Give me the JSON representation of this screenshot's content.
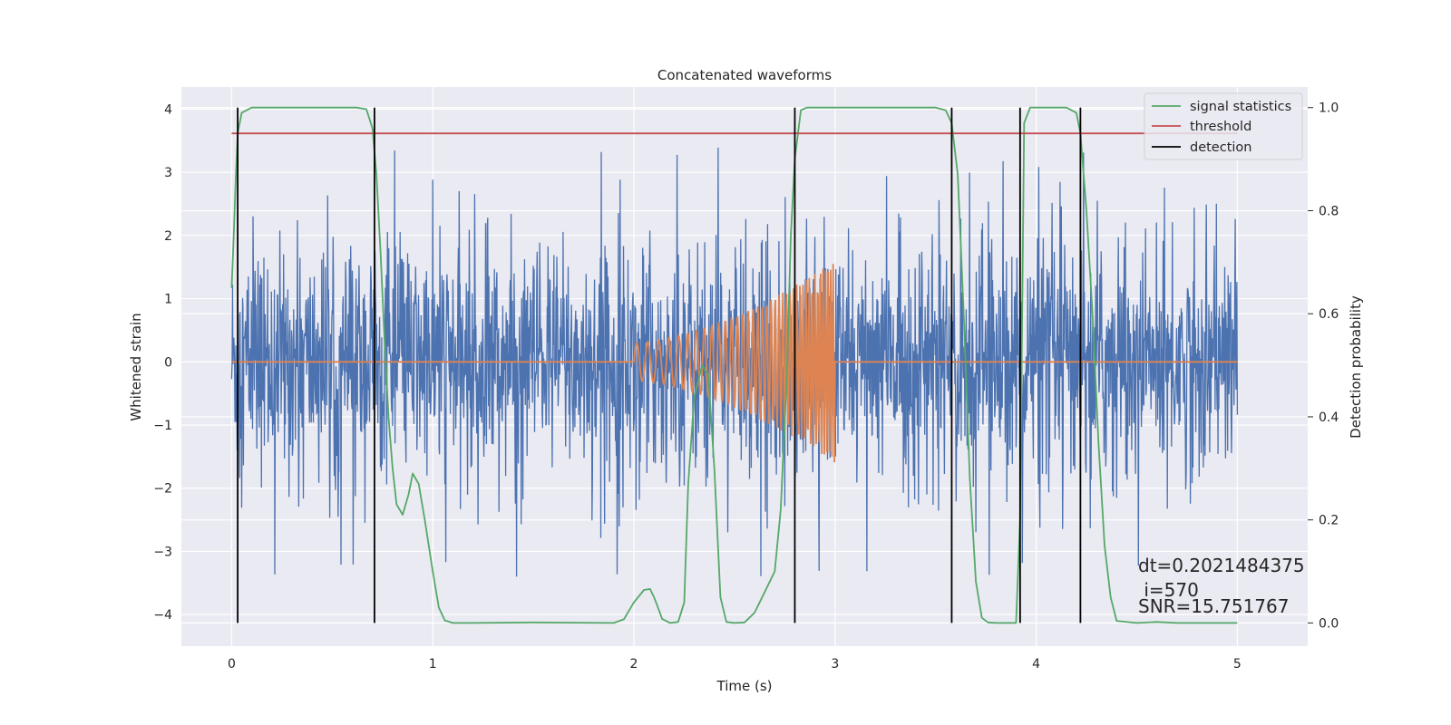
{
  "chart_data": {
    "type": "line",
    "title": "Concatenated waveforms",
    "xlabel": "Time (s)",
    "ylabel": "Whitened strain",
    "y2label": "Detection probability",
    "xlim": [
      -0.25,
      5.35
    ],
    "ylim": [
      -4.5,
      4.35
    ],
    "y2lim": [
      -0.045,
      1.04
    ],
    "xticks": [
      0,
      1,
      2,
      3,
      4,
      5
    ],
    "xtick_labels": [
      "0",
      "1",
      "2",
      "3",
      "4",
      "5"
    ],
    "yticks": [
      -4,
      -3,
      -2,
      -1,
      0,
      1,
      2,
      3,
      4
    ],
    "ytick_labels": [
      "−4",
      "−3",
      "−2",
      "−1",
      "0",
      "1",
      "2",
      "3",
      "4"
    ],
    "y2ticks": [
      0.0,
      0.2,
      0.4,
      0.6,
      0.8,
      1.0
    ],
    "y2tick_labels": [
      "0.0",
      "0.2",
      "0.4",
      "0.6",
      "0.8",
      "1.0"
    ],
    "grid": true,
    "legend_position": "top-right",
    "series": [
      {
        "name": "",
        "kind": "noise",
        "axis": "left",
        "color": "#4c72b0",
        "x_range": [
          0,
          5
        ],
        "typical_amplitude": 1.6,
        "peak_amplitude": 3.4
      },
      {
        "name": "",
        "kind": "chirp",
        "axis": "left",
        "color": "#dd8452",
        "x_range": [
          0,
          5
        ],
        "chirp_start": 2.0,
        "chirp_end": 3.0,
        "amplitude_start": 0.3,
        "amplitude_end": 1.6
      },
      {
        "name": "signal statistics",
        "axis": "right",
        "color": "#55a868",
        "x": [
          0.0,
          0.01,
          0.02,
          0.03,
          0.05,
          0.1,
          0.2,
          0.5,
          0.62,
          0.67,
          0.7,
          0.72,
          0.74,
          0.76,
          0.78,
          0.8,
          0.82,
          0.85,
          0.88,
          0.9,
          0.93,
          0.96,
          1.0,
          1.03,
          1.06,
          1.1,
          1.2,
          1.5,
          1.9,
          1.95,
          2.0,
          2.05,
          2.08,
          2.1,
          2.12,
          2.14,
          2.18,
          2.22,
          2.25,
          2.27,
          2.3,
          2.34,
          2.37,
          2.4,
          2.43,
          2.46,
          2.5,
          2.55,
          2.6,
          2.65,
          2.7,
          2.73,
          2.76,
          2.78,
          2.8,
          2.83,
          2.86,
          2.9,
          3.0,
          3.5,
          3.55,
          3.58,
          3.61,
          3.64,
          3.67,
          3.7,
          3.73,
          3.76,
          3.8,
          3.9,
          3.92,
          3.94,
          3.97,
          4.0,
          4.05,
          4.15,
          4.2,
          4.22,
          4.25,
          4.28,
          4.31,
          4.34,
          4.37,
          4.4,
          4.5,
          4.6,
          4.7,
          5.0
        ],
        "y": [
          0.65,
          0.75,
          0.86,
          0.95,
          0.99,
          1.0,
          1.0,
          1.0,
          1.0,
          0.997,
          0.96,
          0.87,
          0.72,
          0.55,
          0.4,
          0.3,
          0.23,
          0.21,
          0.25,
          0.29,
          0.27,
          0.2,
          0.1,
          0.03,
          0.005,
          0.0,
          0.0,
          0.001,
          0.0,
          0.007,
          0.04,
          0.064,
          0.066,
          0.05,
          0.03,
          0.008,
          0.0,
          0.002,
          0.04,
          0.27,
          0.44,
          0.5,
          0.48,
          0.3,
          0.05,
          0.002,
          0.0,
          0.001,
          0.02,
          0.06,
          0.1,
          0.22,
          0.48,
          0.75,
          0.9,
          0.995,
          1.0,
          1.0,
          1.0,
          1.0,
          0.995,
          0.97,
          0.87,
          0.6,
          0.28,
          0.08,
          0.01,
          0.001,
          0.0,
          0.0,
          0.2,
          0.97,
          1.0,
          1.0,
          1.0,
          1.0,
          0.99,
          0.95,
          0.8,
          0.6,
          0.35,
          0.15,
          0.05,
          0.004,
          0.0,
          0.002,
          0.0,
          0.0
        ]
      },
      {
        "name": "threshold",
        "axis": "right",
        "color": "#c44e52",
        "x": [
          0,
          5
        ],
        "y": [
          0.95,
          0.95
        ]
      },
      {
        "name": "detection",
        "kind": "vertical_lines",
        "axis": "right",
        "color": "#000000",
        "x": [
          0.03,
          0.71,
          2.8,
          3.58,
          3.92,
          4.22
        ],
        "y_range": [
          0.0,
          1.0
        ]
      }
    ],
    "annotations": [
      "dt=0.2021484375",
      " i=570",
      "SNR=15.751767"
    ]
  }
}
